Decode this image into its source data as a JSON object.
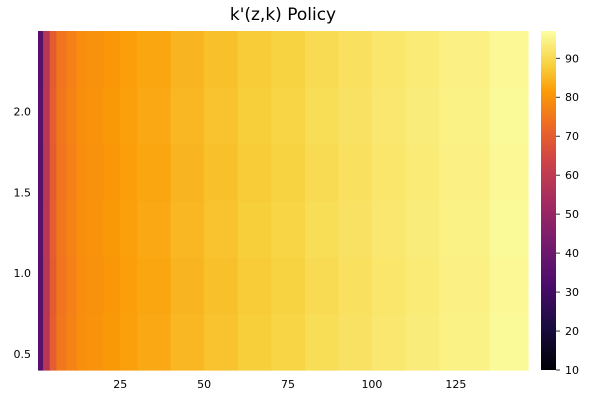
{
  "chart_data": {
    "type": "heatmap",
    "title": "k'(z,k) Policy",
    "xlabel": "",
    "ylabel": "",
    "xlim": [
      0.5,
      146.5
    ],
    "ylim": [
      0.4,
      2.5
    ],
    "x_ticks": [
      "25",
      "50",
      "75",
      "100",
      "125"
    ],
    "x_tick_values": [
      25,
      50,
      75,
      100,
      125
    ],
    "y_ticks": [
      "0.5",
      "1.0",
      "1.5",
      "2.0"
    ],
    "y_tick_values": [
      0.5,
      1.0,
      1.5,
      2.0
    ],
    "colormap": "inferno",
    "colorbar": {
      "range": [
        10,
        97
      ],
      "ticks": [
        "10",
        "20",
        "30",
        "40",
        "50",
        "60",
        "70",
        "80",
        "90"
      ],
      "tick_values": [
        10,
        20,
        30,
        40,
        50,
        60,
        70,
        80,
        90
      ]
    },
    "x_edges": [
      0.5,
      2,
      4,
      6,
      9,
      12,
      15,
      20,
      25,
      30,
      40,
      50,
      60,
      70,
      80,
      90,
      100,
      110,
      120,
      135,
      146.5
    ],
    "y_edges": [
      0.4,
      0.75,
      1.1,
      1.45,
      1.8,
      2.15,
      2.5
    ],
    "column_values": [
      35,
      58,
      70,
      75,
      77,
      79,
      80,
      81,
      82,
      83,
      85,
      86.5,
      88,
      89,
      90.5,
      91.5,
      92.5,
      93.5,
      94.5,
      96
    ],
    "grid": false,
    "legend": "colorbar-right"
  }
}
